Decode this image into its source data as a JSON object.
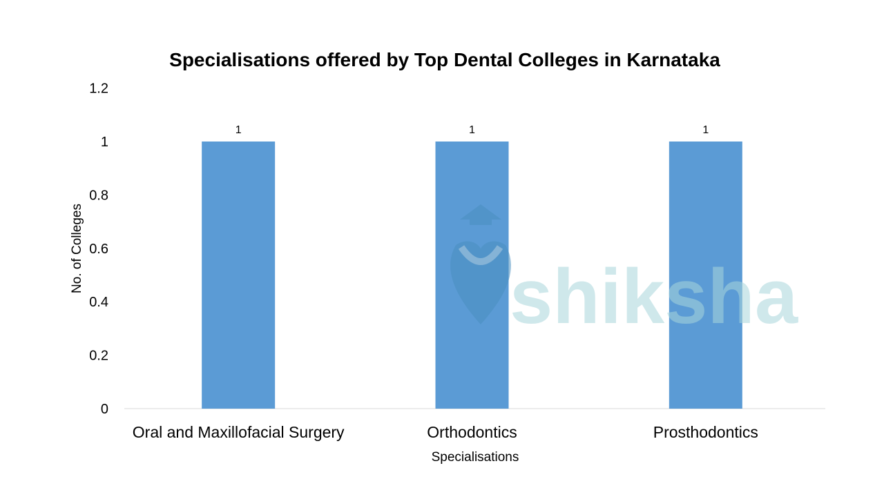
{
  "chart_data": {
    "type": "bar",
    "title": "Specialisations offered by Top Dental Colleges in Karnataka",
    "xlabel": "Specialisations",
    "ylabel": "No. of Colleges",
    "categories": [
      "Oral and Maxillofacial Surgery",
      "Orthodontics",
      "Prosthodontics"
    ],
    "values": [
      1,
      1,
      1
    ],
    "data_labels": [
      "1",
      "1",
      "1"
    ],
    "ylim": [
      0,
      1.2
    ],
    "yticks": [
      "0",
      "0.2",
      "0.4",
      "0.6",
      "0.8",
      "1",
      "1.2"
    ],
    "grid": false,
    "legend": "none",
    "bar_color": "#5b9bd5"
  },
  "watermark": {
    "text": "shiksha",
    "color": "#a9d6db"
  }
}
